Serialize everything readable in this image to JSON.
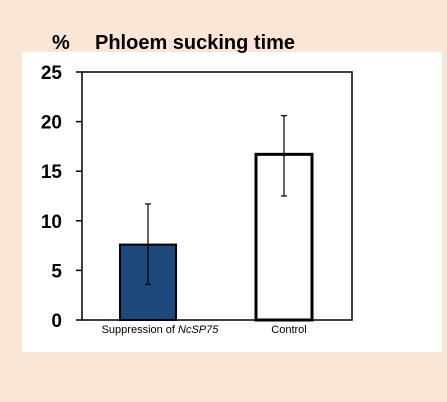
{
  "chart_data": {
    "type": "bar",
    "title": "Phloem sucking time",
    "ylabel": "%",
    "xlabel": "",
    "ylim": [
      0,
      25
    ],
    "yticks": [
      0,
      5,
      10,
      15,
      20,
      25
    ],
    "grid": false,
    "categories": [
      {
        "prefix": "Suppression of ",
        "italic": "NcSP75"
      },
      {
        "prefix": "Control",
        "italic": ""
      }
    ],
    "values": [
      7.6,
      16.7
    ],
    "error_low": [
      3.6,
      12.5
    ],
    "error_high": [
      11.7,
      20.6
    ],
    "colors": {
      "suppression_fill": "#1f497d",
      "control_fill": "#ffffff",
      "bar_edge": "#000000",
      "background": "#fbe5d6",
      "plot_panel": "#ffffff"
    }
  }
}
